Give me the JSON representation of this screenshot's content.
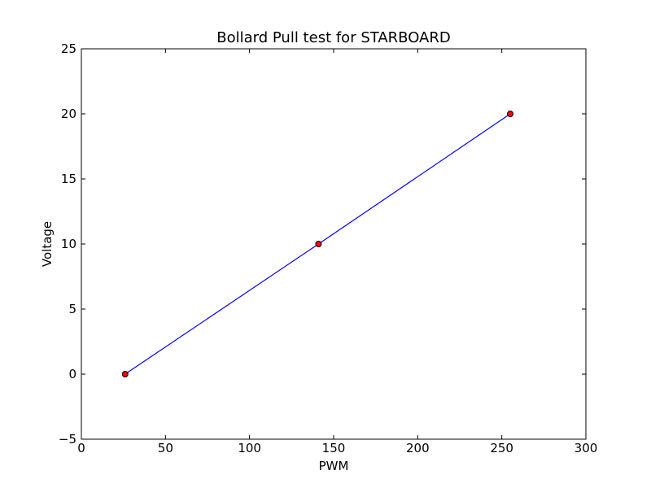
{
  "chart_data": {
    "type": "line",
    "title": "Bollard Pull test for STARBOARD",
    "xlabel": "PWM",
    "ylabel": "Voltage",
    "xlim": [
      0,
      300
    ],
    "ylim": [
      -5,
      25
    ],
    "xticks": [
      0,
      50,
      100,
      150,
      200,
      250,
      300
    ],
    "yticks": [
      -5,
      0,
      5,
      10,
      15,
      20,
      25
    ],
    "xtick_labels": [
      "0",
      "50",
      "100",
      "150",
      "200",
      "250",
      "300"
    ],
    "ytick_labels": [
      "−5",
      "0",
      "5",
      "10",
      "15",
      "20",
      "25"
    ],
    "grid": false,
    "series": [
      {
        "x": [
          26,
          141,
          255
        ],
        "y": [
          0,
          10,
          20
        ],
        "line_color": "#0000ff",
        "marker_color": "#ff0000",
        "marker_edge_color": "#000000"
      }
    ]
  }
}
